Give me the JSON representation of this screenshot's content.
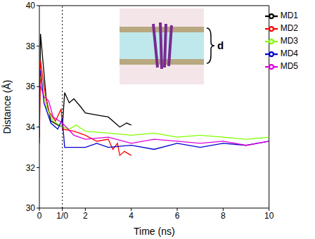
{
  "chart_data": {
    "type": "line",
    "x_label": "Time (ns)",
    "y_label": "Distance (Å)",
    "annotation": "d",
    "xlim": [
      0,
      10
    ],
    "xticks": [
      0,
      {
        "value": 1,
        "label": "1/0"
      },
      2,
      4,
      6,
      8,
      10
    ],
    "ylim": [
      30,
      40
    ],
    "yticks": [
      30,
      32,
      34,
      36,
      38,
      40
    ],
    "grid": false,
    "legend": "upper right",
    "series": [
      {
        "name": "MD1",
        "color": "#000000",
        "x": [
          0,
          0.05,
          0.3,
          0.5,
          0.8,
          1.0,
          1.1,
          1.3,
          1.5,
          1.8,
          2.0,
          2.5,
          3.0,
          3.5,
          3.8,
          4.0
        ],
        "values": [
          33.5,
          38.6,
          35.4,
          34.3,
          34.1,
          34.0,
          35.7,
          35.2,
          35.4,
          35.0,
          34.7,
          34.6,
          34.5,
          34.0,
          34.2,
          34.1
        ]
      },
      {
        "name": "MD2",
        "color": "#ff0000",
        "x": [
          0,
          0.05,
          0.2,
          0.4,
          0.7,
          0.95,
          1.0,
          1.5,
          2.0,
          2.5,
          3.0,
          3.2,
          3.4,
          3.5,
          3.7,
          4.0
        ],
        "values": [
          33.2,
          37.3,
          36.0,
          34.8,
          34.3,
          34.9,
          33.9,
          33.8,
          33.6,
          33.3,
          33.4,
          32.9,
          33.2,
          32.6,
          32.8,
          32.6
        ]
      },
      {
        "name": "MD3",
        "color": "#80ff00",
        "x": [
          0.05,
          0.3,
          0.6,
          1.0,
          1.3,
          1.6,
          2.0,
          3.0,
          4.0,
          5.0,
          6.0,
          7.0,
          8.0,
          9.0,
          10.0
        ],
        "values": [
          36.5,
          35.0,
          34.3,
          34.0,
          33.9,
          34.1,
          33.8,
          33.7,
          33.6,
          33.7,
          33.5,
          33.6,
          33.5,
          33.4,
          33.5
        ]
      },
      {
        "name": "MD4",
        "color": "#0000cc",
        "x": [
          0.05,
          0.2,
          0.5,
          0.8,
          1.0,
          1.1,
          2.0,
          2.5,
          3.0,
          4.0,
          5.0,
          6.0,
          7.0,
          8.0,
          9.0,
          10.0
        ],
        "values": [
          36.8,
          35.2,
          34.2,
          33.9,
          34.4,
          33.0,
          33.0,
          33.2,
          33.0,
          33.1,
          32.9,
          33.2,
          33.0,
          33.2,
          33.1,
          33.3
        ]
      },
      {
        "name": "MD5",
        "color": "#dd00dd",
        "x": [
          0,
          0.2,
          0.4,
          0.6,
          1.0,
          1.5,
          2.0,
          3.0,
          4.0,
          5.0,
          6.0,
          7.0,
          8.0,
          9.0,
          10.0
        ],
        "values": [
          36.2,
          35.5,
          35.3,
          34.5,
          34.2,
          33.6,
          33.4,
          33.5,
          33.2,
          33.4,
          33.3,
          33.2,
          33.3,
          33.1,
          33.3
        ]
      }
    ]
  }
}
